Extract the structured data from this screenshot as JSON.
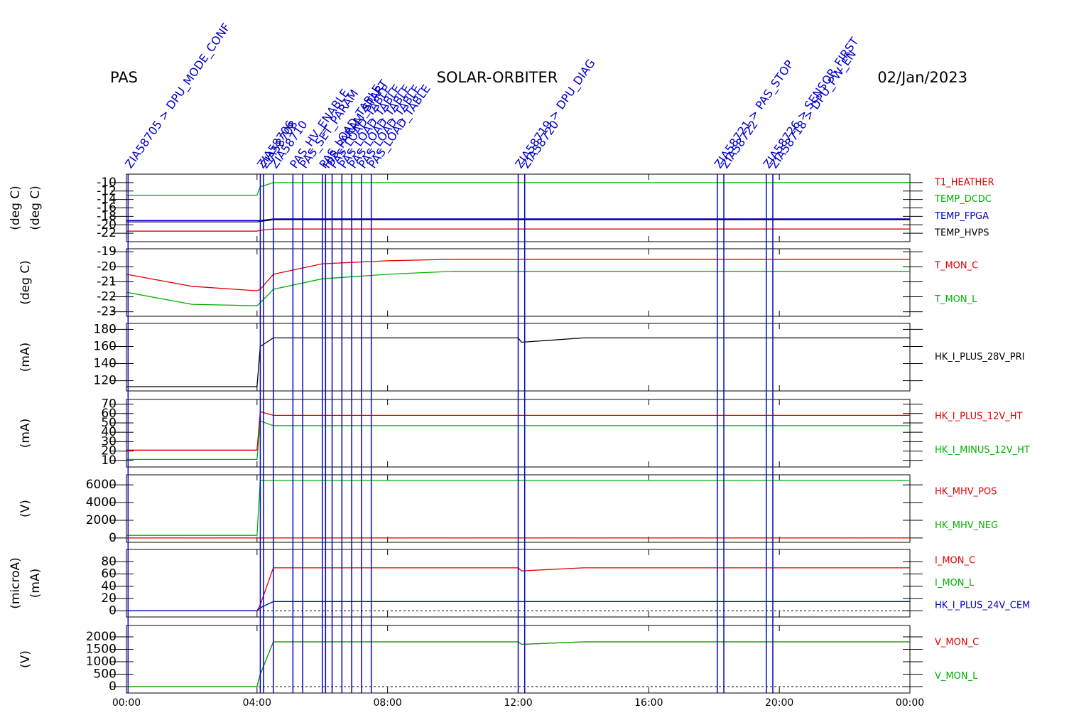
{
  "header": {
    "instrument": "PAS",
    "mission": "SOLAR-ORBITER",
    "date": "02/Jan/2023"
  },
  "events": [
    {
      "x": 0.05,
      "label": "ZIA58705 > DPU_MODE_CONF"
    },
    {
      "x": 4.1,
      "label": "ZIA58706"
    },
    {
      "x": 4.2,
      "label": "ZIA58708"
    },
    {
      "x": 4.5,
      "label": "ZIA58710"
    },
    {
      "x": 5.1,
      "label": "PAS_HV_ENABLE"
    },
    {
      "x": 5.4,
      "label": "PAS_SET_PARAM"
    },
    {
      "x": 6.0,
      "label": "PAS_LOAD_TABLE"
    },
    {
      "x": 6.1,
      "label": "HIS_PARAM_START"
    },
    {
      "x": 6.3,
      "label": "PAS_LOAD_TABLE"
    },
    {
      "x": 6.6,
      "label": "PAS_LOAD_TABLE"
    },
    {
      "x": 6.9,
      "label": "PAS_LOAD_TABLE"
    },
    {
      "x": 7.2,
      "label": "PAS_LOAD_TABLE"
    },
    {
      "x": 7.5,
      "label": "PAS_LOAD_TABLE"
    },
    {
      "x": 12.0,
      "label": "ZIA58719 > DPU_DIAG"
    },
    {
      "x": 12.2,
      "label": "ZIA58720"
    },
    {
      "x": 18.1,
      "label": "ZIA58721 > PAS_STOP"
    },
    {
      "x": 18.3,
      "label": "ZIA58722"
    },
    {
      "x": 19.6,
      "label": "ZIA58726 > SENSOR_FIRST"
    },
    {
      "x": 19.8,
      "label": "ZIA58718 > DPU_PW_EN"
    }
  ],
  "chart_data": [
    {
      "type": "line",
      "ylabel": [
        "(deg C)",
        "(deg C)"
      ],
      "ylim": [
        -24,
        -8
      ],
      "yticks": [
        -22,
        -20,
        -18,
        -16,
        -14,
        -12,
        -10
      ],
      "xlim": [
        0,
        24
      ],
      "x": [
        0,
        2,
        4,
        4.1,
        4.5,
        6,
        8,
        10,
        12,
        12.1,
        14,
        16,
        18,
        20,
        22,
        24
      ],
      "series": [
        {
          "name": "T1_HEATHER",
          "color": "#e00000",
          "values": [
            -21.5,
            -21.5,
            -21.5,
            -21.3,
            -21,
            -21,
            -21,
            -21,
            -21,
            -21,
            -21,
            -21,
            -21,
            -21,
            -21,
            -21
          ]
        },
        {
          "name": "TEMP_DCDC",
          "color": "#00b000",
          "values": [
            -13,
            -13,
            -13,
            -11,
            -10,
            -10,
            -10,
            -10,
            -10,
            -10,
            -10,
            -10,
            -10,
            -10,
            -10,
            -10
          ]
        },
        {
          "name": "TEMP_FPGA",
          "color": "#0000cc",
          "values": [
            -19,
            -19,
            -19,
            -19,
            -18.6,
            -18.6,
            -18.6,
            -18.6,
            -18.6,
            -18.6,
            -18.6,
            -18.6,
            -18.6,
            -18.6,
            -18.6,
            -18.6
          ]
        },
        {
          "name": "TEMP_HVPS",
          "color": "#000000",
          "values": [
            -19.3,
            -19.3,
            -19.3,
            -19.2,
            -18.8,
            -18.8,
            -18.8,
            -18.8,
            -18.8,
            -18.8,
            -18.8,
            -18.8,
            -18.8,
            -18.8,
            -18.8,
            -18.8
          ]
        }
      ]
    },
    {
      "type": "line",
      "ylabel": [
        "(deg C)"
      ],
      "ylim": [
        -23.3,
        -18.8
      ],
      "yticks": [
        -23,
        -22,
        -21,
        -20,
        -19
      ],
      "xlim": [
        0,
        24
      ],
      "x": [
        0,
        2,
        4,
        4.1,
        4.5,
        6,
        8,
        10,
        12,
        12.1,
        14,
        16,
        18,
        20,
        22,
        24
      ],
      "series": [
        {
          "name": "T_MON_C",
          "color": "#e00000",
          "values": [
            -20.5,
            -21.3,
            -21.6,
            -21.5,
            -20.5,
            -19.8,
            -19.6,
            -19.5,
            -19.5,
            -19.5,
            -19.5,
            -19.5,
            -19.5,
            -19.5,
            -19.5,
            -19.5
          ]
        },
        {
          "name": "T_MON_L",
          "color": "#00b000",
          "values": [
            -21.7,
            -22.5,
            -22.6,
            -22.4,
            -21.5,
            -20.8,
            -20.5,
            -20.3,
            -20.3,
            -20.3,
            -20.3,
            -20.3,
            -20.3,
            -20.3,
            -20.3,
            -20.3
          ]
        }
      ]
    },
    {
      "type": "line",
      "ylabel": [
        "(mA)"
      ],
      "ylim": [
        108,
        187
      ],
      "yticks": [
        120,
        140,
        160,
        180
      ],
      "xlim": [
        0,
        24
      ],
      "x": [
        0,
        2,
        4,
        4.1,
        4.5,
        6,
        8,
        10,
        12,
        12.1,
        14,
        16,
        18,
        20,
        22,
        24
      ],
      "series": [
        {
          "name": "HK_I_PLUS_28V_PRI",
          "color": "#000000",
          "values": [
            113,
            113,
            113,
            160,
            170,
            170,
            170,
            170,
            170,
            165,
            170,
            170,
            170,
            170,
            170,
            170
          ]
        }
      ]
    },
    {
      "type": "line",
      "ylabel": [
        "(mA)"
      ],
      "ylim": [
        3,
        75
      ],
      "yticks": [
        10,
        20,
        30,
        40,
        50,
        60,
        70
      ],
      "xlim": [
        0,
        24
      ],
      "x": [
        0,
        2,
        4,
        4.1,
        4.5,
        6,
        8,
        10,
        12,
        12.1,
        14,
        16,
        18,
        20,
        22,
        24
      ],
      "series": [
        {
          "name": "HK_I_PLUS_12V_HT",
          "color": "#e00000",
          "values": [
            21,
            21,
            21,
            62,
            58,
            58,
            58,
            58,
            58,
            58,
            58,
            58,
            58,
            58,
            58,
            58
          ]
        },
        {
          "name": "HK_I_MINUS_12V_HT",
          "color": "#00b000",
          "values": [
            11,
            11,
            11,
            52,
            47,
            47,
            47,
            47,
            47,
            47,
            47,
            47,
            47,
            47,
            47,
            47
          ]
        }
      ]
    },
    {
      "type": "line",
      "ylabel": [
        "(V)"
      ],
      "ylim": [
        -490,
        7135
      ],
      "yticks": [
        0,
        2000,
        4000,
        6000
      ],
      "xlim": [
        0,
        24
      ],
      "x": [
        0,
        2,
        4,
        4.1,
        4.5,
        6,
        8,
        10,
        12,
        12.1,
        14,
        16,
        18,
        20,
        22,
        24
      ],
      "series": [
        {
          "name": "HK_MHV_POS",
          "color": "#e00000",
          "values": [
            0,
            0,
            0,
            0,
            0,
            0,
            0,
            0,
            0,
            0,
            0,
            0,
            0,
            0,
            0,
            0
          ]
        },
        {
          "name": "HK_MHV_NEG",
          "color": "#00b000",
          "values": [
            300,
            300,
            300,
            6500,
            6500,
            6500,
            6500,
            6500,
            6500,
            6500,
            6500,
            6500,
            6500,
            6500,
            6500,
            6500
          ]
        }
      ]
    },
    {
      "type": "line",
      "ylabel": [
        "(microA)",
        "(mA)"
      ],
      "ylim": [
        -10,
        100
      ],
      "yticks": [
        0,
        20,
        40,
        60,
        80
      ],
      "xlim": [
        0,
        24
      ],
      "x": [
        0,
        2,
        4,
        4.1,
        4.5,
        6,
        8,
        10,
        12,
        12.1,
        14,
        16,
        18,
        20,
        22,
        24
      ],
      "series": [
        {
          "name": "I_MON_C",
          "color": "#e00000",
          "values": [
            0,
            0,
            0,
            10,
            70,
            70,
            70,
            70,
            70,
            65,
            70,
            70,
            70,
            70,
            70,
            70
          ]
        },
        {
          "name": "I_MON_L",
          "color": "#00b000",
          "values": [
            0,
            0,
            0,
            5,
            15,
            15,
            15,
            15,
            15,
            15,
            15,
            15,
            15,
            15,
            15,
            15
          ]
        },
        {
          "name": "HK_I_PLUS_24V_CEM",
          "color": "#0000cc",
          "values": [
            0,
            0,
            0,
            5,
            15,
            15,
            15,
            15,
            15,
            15,
            15,
            15,
            15,
            15,
            15,
            15
          ]
        }
      ]
    },
    {
      "type": "line",
      "ylabel": [
        "(V)"
      ],
      "ylim": [
        -257,
        2457
      ],
      "yticks": [
        0,
        500,
        1000,
        1500,
        2000
      ],
      "xlim": [
        0,
        24
      ],
      "x": [
        0,
        2,
        4,
        4.1,
        4.5,
        6,
        8,
        10,
        12,
        12.1,
        14,
        16,
        18,
        20,
        22,
        24
      ],
      "xticks": [
        {
          "value": 0,
          "label": "00:00"
        },
        {
          "value": 4,
          "label": "04:00"
        },
        {
          "value": 8,
          "label": "08:00"
        },
        {
          "value": 12,
          "label": "12:00"
        },
        {
          "value": 16,
          "label": "16:00"
        },
        {
          "value": 20,
          "label": "20:00"
        },
        {
          "value": 24,
          "label": "00:00"
        }
      ],
      "series": [
        {
          "name": "V_MON_C",
          "color": "#e00000",
          "values": [
            0,
            0,
            0,
            500,
            1800,
            1800,
            1800,
            1800,
            1800,
            1700,
            1800,
            1800,
            1800,
            1800,
            1800,
            1800
          ]
        },
        {
          "name": "V_MON_L",
          "color": "#00b000",
          "values": [
            0,
            0,
            0,
            500,
            1800,
            1800,
            1800,
            1800,
            1800,
            1700,
            1800,
            1800,
            1800,
            1800,
            1800,
            1800
          ]
        }
      ]
    }
  ]
}
